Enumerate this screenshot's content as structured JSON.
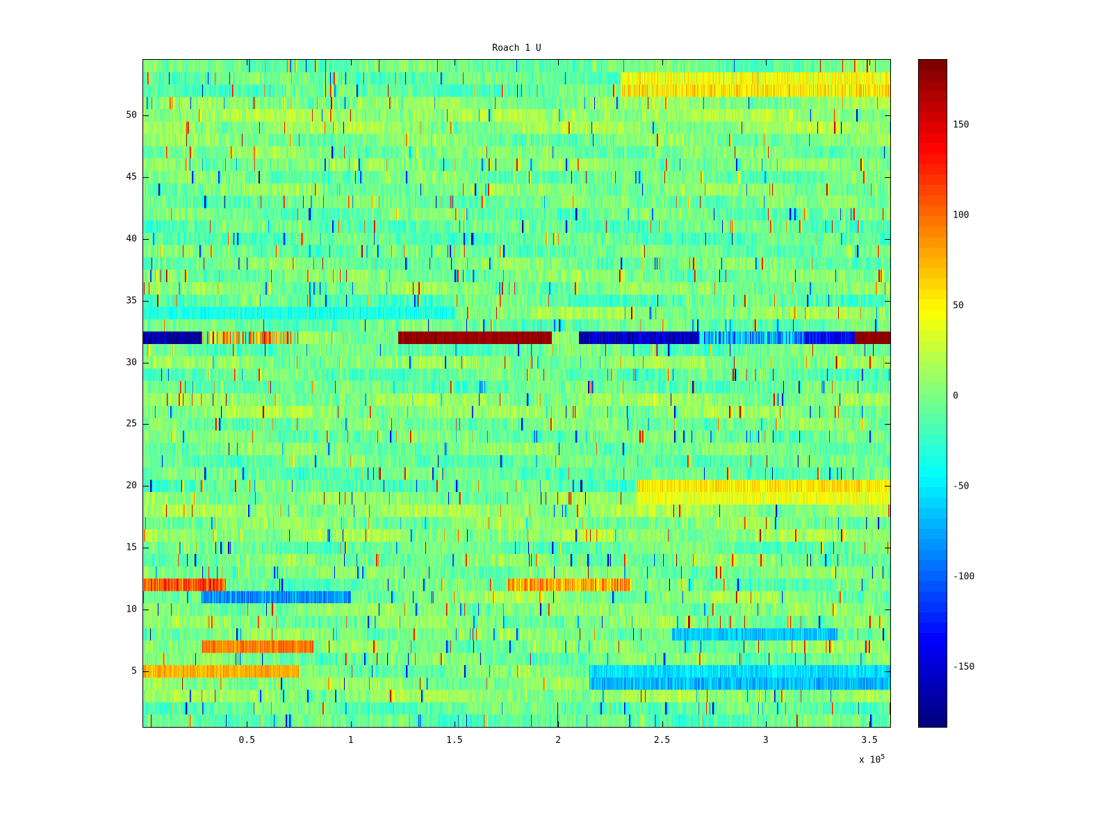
{
  "chart_data": {
    "type": "heatmap",
    "title": "Roach 1 U",
    "xlabel": "",
    "ylabel": "",
    "xlim": [
      0,
      360000
    ],
    "ylim": [
      0.5,
      54.5
    ],
    "caxis": [
      -183,
      186
    ],
    "colormap": "jet",
    "colormap_levels": 64,
    "grid_on": false,
    "legend": "none",
    "x_ticks": {
      "values": [
        50000,
        100000,
        150000,
        200000,
        250000,
        300000,
        350000
      ],
      "labels": [
        "0.5",
        "1",
        "1.5",
        "2",
        "2.5",
        "3",
        "3.5"
      ]
    },
    "x_exponent": {
      "prefix": "x 10",
      "exp": "5"
    },
    "y_ticks": {
      "values": [
        5,
        10,
        15,
        20,
        25,
        30,
        35,
        40,
        45,
        50
      ],
      "labels": [
        "5",
        "10",
        "15",
        "20",
        "25",
        "30",
        "35",
        "40",
        "45",
        "50"
      ]
    },
    "colorbar": {
      "position": "right",
      "tick_values": [
        -150,
        -100,
        -50,
        0,
        50,
        100,
        150
      ],
      "tick_labels": [
        "-150",
        "-100",
        "-50",
        "0",
        "50",
        "100",
        "150"
      ],
      "minor_tick_step": 10
    },
    "grid": {
      "rows": 54,
      "cols": 1075
    },
    "noise": {
      "seed": 1337,
      "row_offset": 13,
      "cell_noise": 38,
      "spike_prob": 0.02,
      "spike_min": 70,
      "spike_max": 180
    },
    "features": [
      {
        "row": 32,
        "x0": 0,
        "x1": 28000,
        "value": -170,
        "jitter": 40
      },
      {
        "row": 32,
        "x0": 28000,
        "x1": 75000,
        "value": 60,
        "jitter": 200
      },
      {
        "row": 32,
        "x0": 123000,
        "x1": 197000,
        "value": 178,
        "jitter": 25
      },
      {
        "row": 32,
        "x0": 210000,
        "x1": 268000,
        "value": -160,
        "jitter": 60
      },
      {
        "row": 32,
        "x0": 268000,
        "x1": 318000,
        "value": -70,
        "jitter": 110
      },
      {
        "row": 32,
        "x0": 318000,
        "x1": 343000,
        "value": -140,
        "jitter": 60
      },
      {
        "row": 32,
        "x0": 343000,
        "x1": 360000,
        "value": 182,
        "jitter": 20
      },
      {
        "row": 12,
        "x0": 0,
        "x1": 40000,
        "value": 110,
        "jitter": 80
      },
      {
        "row": 12,
        "x0": 175000,
        "x1": 235000,
        "value": 80,
        "jitter": 90
      },
      {
        "row": 11,
        "x0": 28000,
        "x1": 100000,
        "value": -85,
        "jitter": 60
      },
      {
        "row": 7,
        "x0": 28000,
        "x1": 82000,
        "value": 95,
        "jitter": 50
      },
      {
        "row": 5,
        "x0": 0,
        "x1": 75000,
        "value": 75,
        "jitter": 40
      },
      {
        "row": 5,
        "x0": 215000,
        "x1": 360000,
        "value": -55,
        "jitter": 40
      },
      {
        "row": 4,
        "x0": 215000,
        "x1": 360000,
        "value": -70,
        "jitter": 50
      },
      {
        "row": 8,
        "x0": 255000,
        "x1": 335000,
        "value": -65,
        "jitter": 45
      },
      {
        "row": 20,
        "x0": 238000,
        "x1": 360000,
        "value": 55,
        "jitter": 45
      },
      {
        "row": 19,
        "x0": 238000,
        "x1": 360000,
        "value": 40,
        "jitter": 40
      },
      {
        "row": 34,
        "x0": 0,
        "x1": 150000,
        "value": -35,
        "jitter": 35
      },
      {
        "row": 52,
        "x0": 230000,
        "x1": 360000,
        "value": 55,
        "jitter": 60
      },
      {
        "row": 53,
        "x0": 230000,
        "x1": 360000,
        "value": 45,
        "jitter": 55
      }
    ]
  },
  "colors": {
    "background": "#ffffff",
    "axis": "#000000",
    "text": "#000000"
  }
}
